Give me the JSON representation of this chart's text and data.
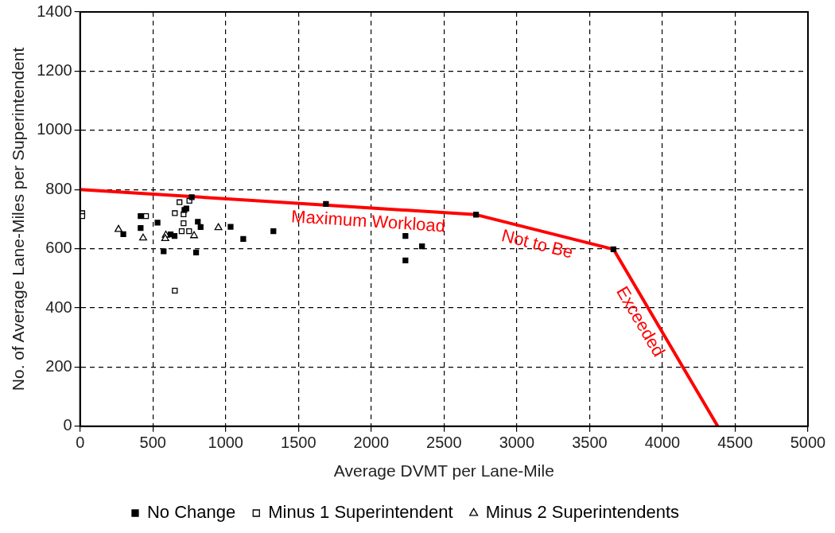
{
  "chart_data": {
    "type": "scatter",
    "xlabel": "Average DVMT per Lane-Mile",
    "ylabel": "No. of Average Lane-Miles per Superintendent",
    "xlim": [
      0,
      5000
    ],
    "xticks": [
      0,
      500,
      1000,
      1500,
      2000,
      2500,
      3000,
      3500,
      4000,
      4500,
      5000
    ],
    "ylim": [
      0,
      1400
    ],
    "yticks": [
      0,
      200,
      400,
      600,
      800,
      1000,
      1200,
      1400
    ],
    "grid": true,
    "legend": "bottom",
    "series": [
      {
        "type": "area",
        "color": "#ff0000",
        "marker": "none",
        "x": [
          0,
          2720,
          3664,
          4380
        ],
        "values": [
          800,
          715,
          598,
          0
        ]
      },
      {
        "name": "No Change",
        "color": "#000000",
        "marker": "square",
        "x": [
          767,
          717,
          730,
          416,
          532,
          416,
          297,
          622,
          649,
          809,
          828,
          1034,
          1121,
          1328,
          574,
          797,
          1689,
          2720,
          2235,
          2349,
          2235,
          3664
        ],
        "values": [
          774,
          731,
          736,
          710,
          688,
          670,
          649,
          648,
          643,
          691,
          673,
          674,
          633,
          659,
          591,
          587,
          751,
          715,
          643,
          608,
          560,
          598
        ]
      },
      {
        "name": "Minus 1 Superintendent",
        "color": "#ffffff",
        "marker": "square",
        "x": [
          15,
          15,
          683,
          751,
          651,
          711,
          711,
          698,
          749,
          651,
          453
        ],
        "values": [
          720,
          710,
          757,
          762,
          720,
          716,
          686,
          659,
          659,
          458,
          710
        ]
      },
      {
        "name": "Minus 2 Superintendents",
        "color": "#ffffff",
        "marker": "triangle",
        "x": [
          264,
          433,
          783,
          950,
          589,
          585
        ],
        "values": [
          665,
          636,
          644,
          671,
          646,
          634
        ]
      }
    ],
    "annotations": [
      "Maximum Workload",
      "Not to Be",
      "Exceeded"
    ]
  }
}
